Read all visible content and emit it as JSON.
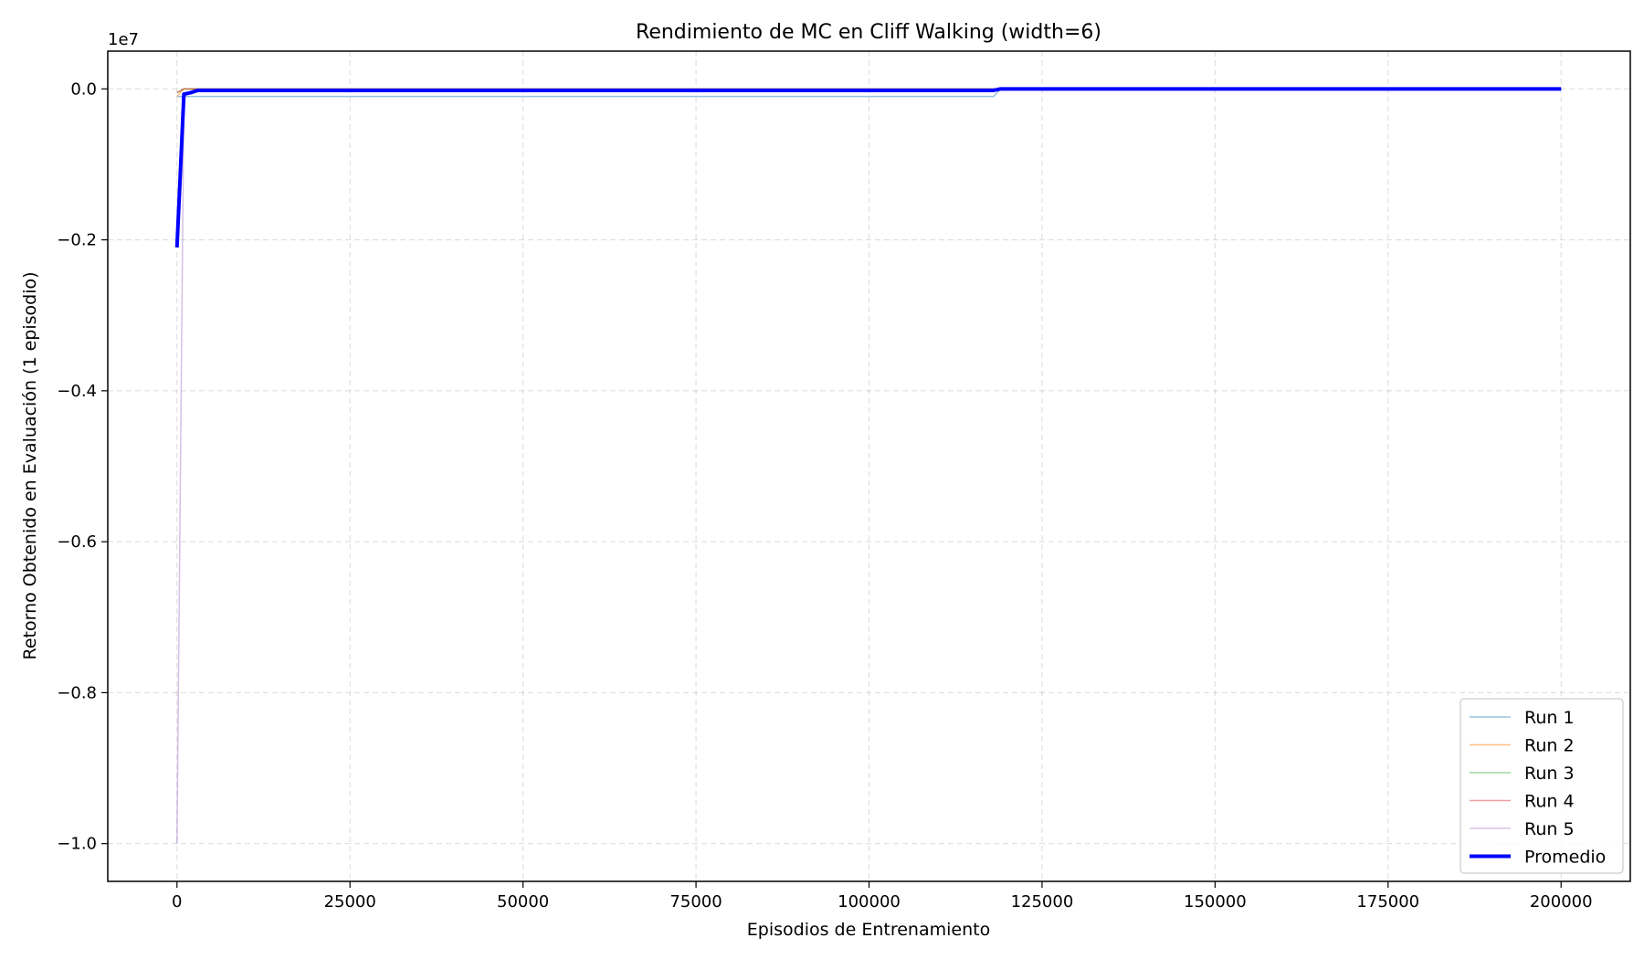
{
  "chart_data": {
    "type": "line",
    "title": "Rendimiento de MC en Cliff Walking (width=6)",
    "xlabel": "Episodios de Entrenamiento",
    "ylabel": "Retorno Obtenido en Evaluación (1 episodio)",
    "y_offset_label": "1e7",
    "y_scale": 10000000,
    "xlim": [
      -10000,
      210000
    ],
    "ylim": [
      -1.05,
      0.05
    ],
    "x_ticks": [
      0,
      25000,
      50000,
      75000,
      100000,
      125000,
      150000,
      175000,
      200000
    ],
    "x_tick_labels": [
      "0",
      "25000",
      "50000",
      "75000",
      "100000",
      "125000",
      "150000",
      "175000",
      "200000"
    ],
    "y_ticks": [
      0.0,
      -0.2,
      -0.4,
      -0.6,
      -0.8,
      -1.0
    ],
    "y_tick_labels": [
      "0.0",
      "−0.2",
      "−0.4",
      "−0.6",
      "−0.8",
      "−1.0"
    ],
    "grid": true,
    "legend_position": "bottom-right",
    "series": [
      {
        "name": "Run 1",
        "color": "#1f77b4",
        "alpha": 0.45,
        "width": 1.5,
        "points": [
          [
            0,
            -0.01
          ],
          [
            1000,
            -0.01
          ],
          [
            2000,
            -0.01
          ],
          [
            3000,
            -0.01
          ],
          [
            118000,
            -0.01
          ],
          [
            119000,
            0.0
          ],
          [
            200000,
            0.0
          ]
        ]
      },
      {
        "name": "Run 2",
        "color": "#ff7f0e",
        "alpha": 0.5,
        "width": 1.5,
        "points": [
          [
            0,
            -0.01
          ],
          [
            1000,
            0.0
          ],
          [
            3000,
            0.0
          ],
          [
            200000,
            0.0
          ]
        ]
      },
      {
        "name": "Run 3",
        "color": "#2ca02c",
        "alpha": 0.45,
        "width": 1.5,
        "points": [
          [
            0,
            -0.005
          ],
          [
            1000,
            0.0
          ],
          [
            3000,
            0.0
          ],
          [
            200000,
            0.0
          ]
        ]
      },
      {
        "name": "Run 4",
        "color": "#d62728",
        "alpha": 0.45,
        "width": 1.5,
        "points": [
          [
            0,
            -0.005
          ],
          [
            1000,
            0.0
          ],
          [
            3000,
            0.0
          ],
          [
            200000,
            0.0
          ]
        ]
      },
      {
        "name": "Run 5",
        "color": "#9467bd",
        "alpha": 0.4,
        "width": 1.5,
        "points": [
          [
            0,
            -1.0
          ],
          [
            1000,
            -0.01
          ],
          [
            2000,
            -0.005
          ],
          [
            3000,
            0.0
          ],
          [
            200000,
            0.0
          ]
        ]
      },
      {
        "name": "Promedio",
        "color": "#0000ff",
        "alpha": 1.0,
        "width": 4,
        "points": [
          [
            0,
            -0.21
          ],
          [
            1000,
            -0.007
          ],
          [
            2000,
            -0.005
          ],
          [
            3000,
            -0.002
          ],
          [
            118000,
            -0.002
          ],
          [
            119000,
            0.0
          ],
          [
            200000,
            0.0
          ]
        ]
      }
    ]
  }
}
